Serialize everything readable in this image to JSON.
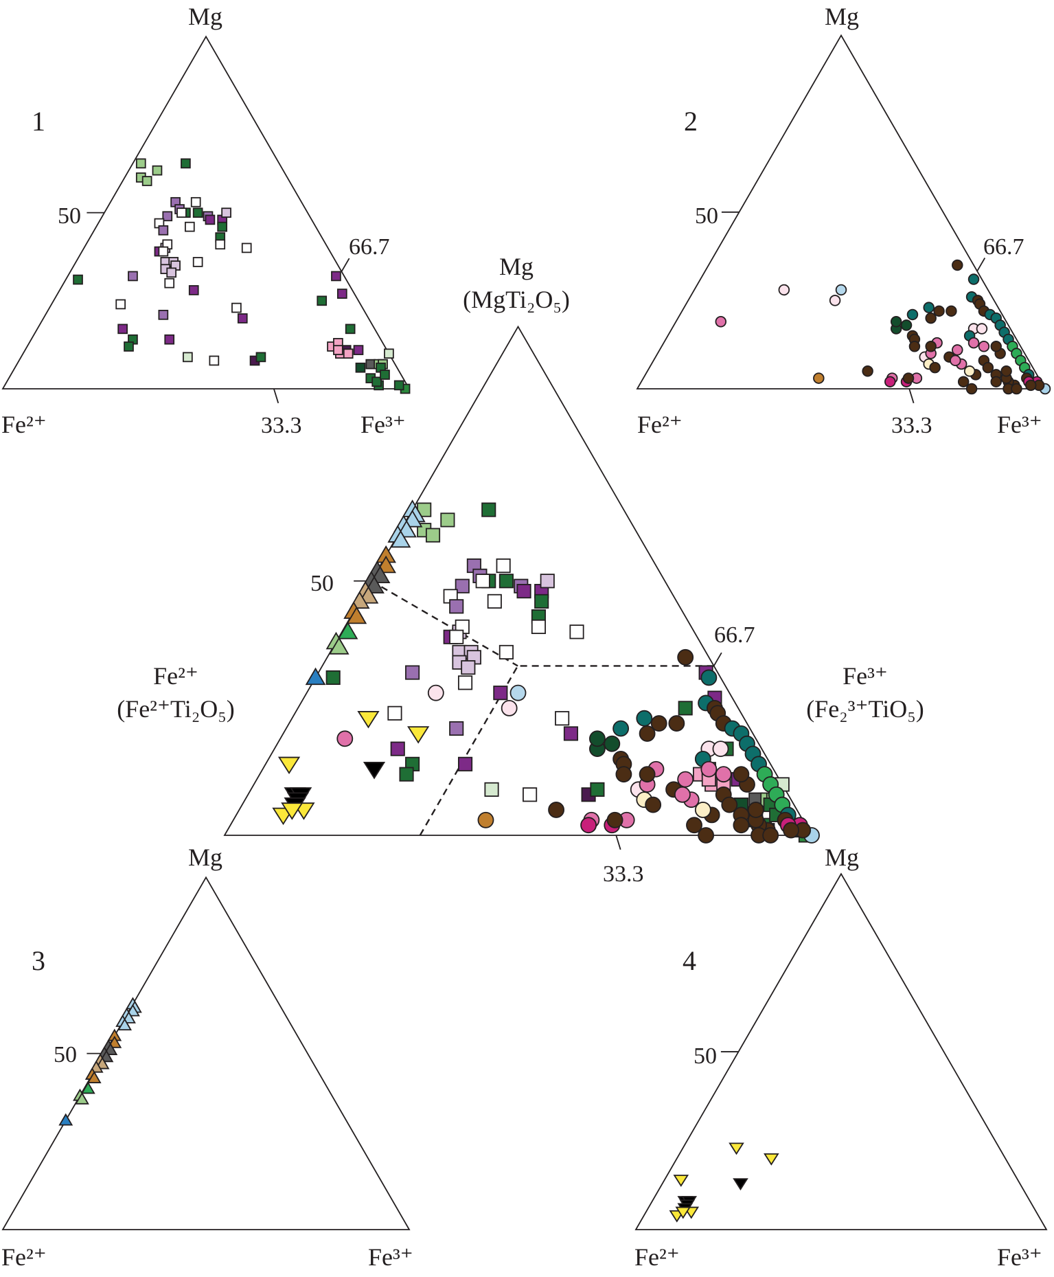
{
  "chart_data": {
    "type": "scatter",
    "kind": "ternary",
    "legend": "none",
    "grid": false,
    "vertices": {
      "top": "Mg",
      "left": "Fe²⁺",
      "right": "Fe³⁺"
    },
    "vertex_labels": {
      "top": [
        "Mg",
        "(MgTi₂O₅)"
      ],
      "left": [
        "Fe²⁺",
        "(Fe²⁺Ti₂O₅)"
      ],
      "right": [
        "Fe³⁺",
        "(Fe₂³⁺TiO₅)"
      ]
    },
    "tick_labels": {
      "left_edge": "50",
      "right_edge": "66.7",
      "bottom_edge": "33.3"
    },
    "field_boundaries": [
      {
        "from": [
          50,
          50,
          0
        ],
        "to": [
          33.3,
          33.3,
          33.3
        ]
      },
      {
        "from": [
          33.3,
          0,
          66.7
        ],
        "to": [
          33.3,
          33.3,
          33.3
        ]
      },
      {
        "from": [
          0,
          66.7,
          33.3
        ],
        "to": [
          33.3,
          33.3,
          33.3
        ]
      }
    ],
    "colors": {
      "lg": "#9ccc8a",
      "vlg": "#d6ead0",
      "dg": "#1f6e35",
      "vdg": "#134d2c",
      "pu": "#7d2a87",
      "lpu": "#9a70b0",
      "llpu": "#d8c4de",
      "dpu": "#4a1a4e",
      "pk": "#f4a3c4",
      "gy": "#5a5a5a",
      "wh": "#ffffff",
      "br": "#4b2d14",
      "tl": "#0d6e6a",
      "mg": "#c8207a",
      "lpk": "#fbe3ec",
      "mpk": "#e071a9",
      "cr": "#fbeec6",
      "or": "#c07f2e",
      "gr": "#2eac57",
      "cy": "#a9d3e9",
      "lb": "#b5d8ec",
      "bl": "#2a7fc1",
      "ta": "#c7a77b",
      "md": "#2c8a3d",
      "ye": "#fbe83a",
      "bk": "#000000"
    },
    "panels": [
      {
        "id": "main",
        "label": ""
      },
      {
        "id": "p1",
        "label": "1"
      },
      {
        "id": "p2",
        "label": "2"
      },
      {
        "id": "p3",
        "label": "3"
      },
      {
        "id": "p4",
        "label": "4"
      }
    ],
    "series": [
      {
        "group": "1",
        "marker": "square",
        "points": [
          {
            "mg": 64,
            "fe3": 2,
            "c": "lg"
          },
          {
            "mg": 62,
            "fe3": 7,
            "c": "lg"
          },
          {
            "mg": 60,
            "fe3": 4,
            "c": "lg"
          },
          {
            "mg": 59,
            "fe3": 6,
            "c": "lg"
          },
          {
            "mg": 64,
            "fe3": 13,
            "c": "dg"
          },
          {
            "mg": 53,
            "fe3": 16,
            "c": "lpu"
          },
          {
            "mg": 51,
            "fe3": 18,
            "c": "lpu"
          },
          {
            "mg": 53,
            "fe3": 21,
            "c": "wh"
          },
          {
            "mg": 49,
            "fe3": 16,
            "c": "lpu"
          },
          {
            "mg": 50,
            "fe3": 20,
            "c": "dg"
          },
          {
            "mg": 50,
            "fe3": 19,
            "c": "wh"
          },
          {
            "mg": 47,
            "fe3": 15,
            "c": "wh"
          },
          {
            "mg": 45,
            "fe3": 17,
            "c": "lpu"
          },
          {
            "mg": 50,
            "fe3": 23,
            "c": "dg"
          },
          {
            "mg": 49,
            "fe3": 26,
            "c": "lpu"
          },
          {
            "mg": 48,
            "fe3": 27,
            "c": "pu"
          },
          {
            "mg": 48,
            "fe3": 30,
            "c": "pu"
          },
          {
            "mg": 50,
            "fe3": 30,
            "c": "llpu"
          },
          {
            "mg": 46,
            "fe3": 31,
            "c": "dg"
          },
          {
            "mg": 43,
            "fe3": 32,
            "c": "dg"
          },
          {
            "mg": 41,
            "fe3": 33,
            "c": "wh"
          },
          {
            "mg": 46,
            "fe3": 23,
            "c": "wh"
          },
          {
            "mg": 40,
            "fe3": 20,
            "c": "llpu"
          },
          {
            "mg": 41,
            "fe3": 20,
            "c": "wh"
          },
          {
            "mg": 39,
            "fe3": 19,
            "c": "pu"
          },
          {
            "mg": 39,
            "fe3": 20,
            "c": "wh"
          },
          {
            "mg": 36,
            "fe3": 22,
            "c": "llpu"
          },
          {
            "mg": 36,
            "fe3": 24,
            "c": "llpu"
          },
          {
            "mg": 35,
            "fe3": 25,
            "c": "llpu"
          },
          {
            "mg": 34,
            "fe3": 23,
            "c": "llpu"
          },
          {
            "mg": 33,
            "fe3": 25,
            "c": "llpu"
          },
          {
            "mg": 36,
            "fe3": 30,
            "c": "wh"
          },
          {
            "mg": 40,
            "fe3": 40,
            "c": "wh"
          },
          {
            "mg": 30,
            "fe3": 26,
            "c": "wh"
          },
          {
            "mg": 32,
            "fe3": 16,
            "c": "lpu"
          },
          {
            "mg": 28,
            "fe3": 33,
            "c": "pu"
          },
          {
            "mg": 24,
            "fe3": 17,
            "c": "wh"
          },
          {
            "mg": 21,
            "fe3": 29,
            "c": "lpu"
          },
          {
            "mg": 23,
            "fe3": 46,
            "c": "wh"
          },
          {
            "mg": 20,
            "fe3": 49,
            "c": "pu"
          },
          {
            "mg": 31,
            "fe3": 3,
            "c": "dg"
          },
          {
            "mg": 17,
            "fe3": 21,
            "c": "pu"
          },
          {
            "mg": 14,
            "fe3": 25,
            "c": "dg"
          },
          {
            "mg": 32,
            "fe3": 66,
            "c": "pu"
          },
          {
            "mg": 27,
            "fe3": 70,
            "c": "pu"
          },
          {
            "mg": 25,
            "fe3": 66,
            "c": "dg"
          },
          {
            "mg": 14,
            "fe3": 34,
            "c": "pu"
          },
          {
            "mg": 12,
            "fe3": 25,
            "c": "dg"
          },
          {
            "mg": 9,
            "fe3": 41,
            "c": "vlg"
          },
          {
            "mg": 8,
            "fe3": 48,
            "c": "wh"
          },
          {
            "mg": 8,
            "fe3": 58,
            "c": "dpu"
          },
          {
            "mg": 9,
            "fe3": 59,
            "c": "dg"
          },
          {
            "mg": 11,
            "fe3": 79,
            "c": "dpu"
          },
          {
            "mg": 12,
            "fe3": 75,
            "c": "pk"
          },
          {
            "mg": 10,
            "fe3": 78,
            "c": "pk"
          },
          {
            "mg": 10,
            "fe3": 80,
            "c": "pk"
          },
          {
            "mg": 17,
            "fe3": 77,
            "c": "dg"
          },
          {
            "mg": 13,
            "fe3": 76,
            "c": "pk"
          },
          {
            "mg": 11,
            "fe3": 77,
            "c": "pk"
          },
          {
            "mg": 11,
            "fe3": 82,
            "c": "pu"
          },
          {
            "mg": 7,
            "fe3": 87,
            "c": "gy"
          },
          {
            "mg": 7,
            "fe3": 89,
            "c": "lg"
          },
          {
            "mg": 7,
            "fe3": 90,
            "c": "lg"
          },
          {
            "mg": 6,
            "fe3": 90,
            "c": "dg"
          },
          {
            "mg": 3,
            "fe3": 89,
            "c": "dg"
          },
          {
            "mg": 1,
            "fe3": 92,
            "c": "dg"
          },
          {
            "mg": 2,
            "fe3": 91,
            "c": "dg"
          },
          {
            "mg": 0,
            "fe3": 99,
            "c": "md"
          },
          {
            "mg": 6,
            "fe3": 85,
            "c": "vdg"
          },
          {
            "mg": 1,
            "fe3": 97,
            "c": "dg"
          },
          {
            "mg": 4,
            "fe3": 92,
            "c": "dg"
          },
          {
            "mg": 10,
            "fe3": 90,
            "c": "vlg"
          }
        ]
      },
      {
        "group": "2",
        "marker": "circle",
        "points": [
          {
            "mg": 35,
            "fe3": 61,
            "c": "br"
          },
          {
            "mg": 31,
            "fe3": 67,
            "c": "tl"
          },
          {
            "mg": 26,
            "fe3": 69,
            "c": "tl"
          },
          {
            "mg": 25,
            "fe3": 71,
            "c": "br"
          },
          {
            "mg": 24,
            "fe3": 72,
            "c": "br"
          },
          {
            "mg": 22,
            "fe3": 74,
            "c": "br"
          },
          {
            "mg": 21,
            "fe3": 76,
            "c": "tl"
          },
          {
            "mg": 20,
            "fe3": 78,
            "c": "tl"
          },
          {
            "mg": 18,
            "fe3": 80,
            "c": "tl"
          },
          {
            "mg": 16,
            "fe3": 82,
            "c": "tl"
          },
          {
            "mg": 14,
            "fe3": 84,
            "c": "tl"
          },
          {
            "mg": 12,
            "fe3": 86,
            "c": "gr"
          },
          {
            "mg": 10,
            "fe3": 88,
            "c": "gr"
          },
          {
            "mg": 8,
            "fe3": 90,
            "c": "gr"
          },
          {
            "mg": 6,
            "fe3": 92,
            "c": "gr"
          },
          {
            "mg": 4,
            "fe3": 94,
            "c": "tl"
          },
          {
            "mg": 2,
            "fe3": 97,
            "c": "mg"
          },
          {
            "mg": 0,
            "fe3": 100,
            "c": "cy"
          },
          {
            "mg": 1,
            "fe3": 98,
            "c": "br"
          },
          {
            "mg": 3,
            "fe3": 94,
            "c": "br"
          },
          {
            "mg": 2,
            "fe3": 95,
            "c": "mg"
          },
          {
            "mg": 1,
            "fe3": 96,
            "c": "br"
          },
          {
            "mg": 1,
            "fe3": 92,
            "c": "br"
          },
          {
            "mg": 2,
            "fe3": 90,
            "c": "br"
          },
          {
            "mg": 3,
            "fe3": 89,
            "c": "br"
          },
          {
            "mg": 5,
            "fe3": 88,
            "c": "br"
          },
          {
            "mg": 4,
            "fe3": 86,
            "c": "br"
          },
          {
            "mg": 2,
            "fe3": 87,
            "c": "br"
          },
          {
            "mg": 0,
            "fe3": 91,
            "c": "br"
          },
          {
            "mg": 0,
            "fe3": 93,
            "c": "br"
          },
          {
            "mg": 10,
            "fe3": 84,
            "c": "br"
          },
          {
            "mg": 12,
            "fe3": 82,
            "c": "br"
          },
          {
            "mg": 8,
            "fe3": 81,
            "c": "br"
          },
          {
            "mg": 6,
            "fe3": 83,
            "c": "br"
          },
          {
            "mg": 4,
            "fe3": 81,
            "c": "br"
          },
          {
            "mg": 2,
            "fe3": 79,
            "c": "br"
          },
          {
            "mg": 0,
            "fe3": 82,
            "c": "br"
          },
          {
            "mg": 22,
            "fe3": 66,
            "c": "br"
          },
          {
            "mg": 22,
            "fe3": 63,
            "c": "br"
          },
          {
            "mg": 23,
            "fe3": 60,
            "c": "tl"
          },
          {
            "mg": 20,
            "fe3": 62,
            "c": "br"
          },
          {
            "mg": 21,
            "fe3": 57,
            "c": "tl"
          },
          {
            "mg": 18,
            "fe3": 57,
            "c": "vdg"
          },
          {
            "mg": 17,
            "fe3": 55,
            "c": "vdg"
          },
          {
            "mg": 19,
            "fe3": 54,
            "c": "vdg"
          },
          {
            "mg": 15,
            "fe3": 60,
            "c": "br"
          },
          {
            "mg": 14,
            "fe3": 61,
            "c": "br"
          },
          {
            "mg": 12,
            "fe3": 62,
            "c": "br"
          },
          {
            "mg": 17,
            "fe3": 74,
            "c": "lpk"
          },
          {
            "mg": 17,
            "fe3": 76,
            "c": "lpk"
          },
          {
            "mg": 15,
            "fe3": 74,
            "c": "tl"
          },
          {
            "mg": 13,
            "fe3": 76,
            "c": "mpk"
          },
          {
            "mg": 12,
            "fe3": 79,
            "c": "mpk"
          },
          {
            "mg": 11,
            "fe3": 73,
            "c": "mpk"
          },
          {
            "mg": 9,
            "fe3": 72,
            "c": "br"
          },
          {
            "mg": 7,
            "fe3": 76,
            "c": "mpk"
          },
          {
            "mg": 8,
            "fe3": 74,
            "c": "mpk"
          },
          {
            "mg": 5,
            "fe3": 79,
            "c": "cr"
          },
          {
            "mg": 9,
            "fe3": 66,
            "c": "lpk"
          },
          {
            "mg": 7,
            "fe3": 68,
            "c": "cr"
          },
          {
            "mg": 13,
            "fe3": 67,
            "c": "mpk"
          },
          {
            "mg": 10,
            "fe3": 67,
            "c": "mpk"
          },
          {
            "mg": 3,
            "fe3": 67,
            "c": "mpk"
          },
          {
            "mg": 2,
            "fe3": 65,
            "c": "mg"
          },
          {
            "mg": 3,
            "fe3": 61,
            "c": "mpk"
          },
          {
            "mg": 2,
            "fe3": 61,
            "c": "mg"
          },
          {
            "mg": 5,
            "fe3": 54,
            "c": "br"
          },
          {
            "mg": 3,
            "fe3": 43,
            "c": "or"
          },
          {
            "mg": 12,
            "fe3": 66,
            "c": "br"
          },
          {
            "mg": 3,
            "fe3": 65,
            "c": "br"
          },
          {
            "mg": 6,
            "fe3": 70,
            "c": "br"
          },
          {
            "mg": 28,
            "fe3": 36,
            "c": "lb"
          },
          {
            "mg": 25,
            "fe3": 36,
            "c": "lpk"
          },
          {
            "mg": 28,
            "fe3": 22,
            "c": "lpk"
          },
          {
            "mg": 19,
            "fe3": 11,
            "c": "mpk"
          }
        ]
      },
      {
        "group": "3",
        "marker": "triangle-up",
        "points": [
          {
            "mg": 64,
            "fe3": 0,
            "c": "cy"
          },
          {
            "mg": 63,
            "fe3": 1,
            "c": "cy"
          },
          {
            "mg": 62,
            "fe3": 1,
            "c": "cy"
          },
          {
            "mg": 61,
            "fe3": 0,
            "c": "cy"
          },
          {
            "mg": 60,
            "fe3": 1,
            "c": "cy"
          },
          {
            "mg": 59,
            "fe3": 0,
            "c": "cy"
          },
          {
            "mg": 58,
            "fe3": 1,
            "c": "cy"
          },
          {
            "mg": 55,
            "fe3": 0,
            "c": "or"
          },
          {
            "mg": 53,
            "fe3": 1,
            "c": "or"
          },
          {
            "mg": 52,
            "fe3": 0,
            "c": "gy"
          },
          {
            "mg": 51,
            "fe3": 1,
            "c": "gy"
          },
          {
            "mg": 50,
            "fe3": 0,
            "c": "gy"
          },
          {
            "mg": 49,
            "fe3": 1,
            "c": "gy"
          },
          {
            "mg": 48,
            "fe3": 0,
            "c": "ta"
          },
          {
            "mg": 47,
            "fe3": 1,
            "c": "ta"
          },
          {
            "mg": 46,
            "fe3": 0,
            "c": "ta"
          },
          {
            "mg": 44,
            "fe3": 0,
            "c": "or"
          },
          {
            "mg": 43,
            "fe3": 1,
            "c": "or"
          },
          {
            "mg": 40,
            "fe3": 1,
            "c": "gr"
          },
          {
            "mg": 38,
            "fe3": 0,
            "c": "lg"
          },
          {
            "mg": 37,
            "fe3": 1,
            "c": "lg"
          },
          {
            "mg": 31,
            "fe3": 0,
            "c": "bl"
          }
        ]
      },
      {
        "group": "4",
        "marker": "triangle-down",
        "points": [
          {
            "mg": 23,
            "fe3": 13,
            "c": "ye"
          },
          {
            "mg": 20,
            "fe3": 23,
            "c": "ye"
          },
          {
            "mg": 14,
            "fe3": 4,
            "c": "ye"
          },
          {
            "mg": 13,
            "fe3": 19,
            "c": "bk"
          },
          {
            "mg": 8,
            "fe3": 8,
            "c": "bk"
          },
          {
            "mg": 8,
            "fe3": 9,
            "c": "bk"
          },
          {
            "mg": 7,
            "fe3": 9,
            "c": "bk"
          },
          {
            "mg": 6,
            "fe3": 9,
            "c": "bk"
          },
          {
            "mg": 4,
            "fe3": 8,
            "c": "ye"
          },
          {
            "mg": 5,
            "fe3": 11,
            "c": "ye"
          },
          {
            "mg": 5,
            "fe3": 9,
            "c": "ye"
          }
        ]
      }
    ]
  }
}
